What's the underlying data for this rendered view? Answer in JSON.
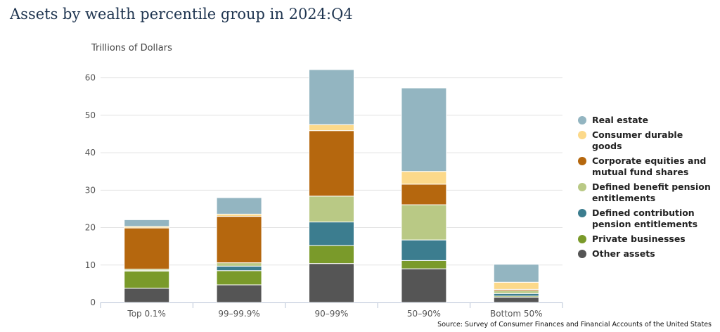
{
  "header": {
    "title": "Assets by wealth percentile group in 2024:Q4"
  },
  "footer": {
    "source": "Source: Survey of Consumer Finances and Financial Accounts of the United States"
  },
  "chart_data": {
    "type": "bar",
    "stacked": true,
    "title": "Assets by wealth percentile group in 2024:Q4",
    "ylabel": "Trillions of Dollars",
    "xlabel": "",
    "ylim": [
      0,
      60
    ],
    "yticks": [
      0,
      10,
      20,
      30,
      40,
      50,
      60
    ],
    "grid": true,
    "legend_position": "right",
    "categories": [
      "Top 0.1%",
      "99–99.9%",
      "90–99%",
      "50–90%",
      "Bottom 50%"
    ],
    "series": [
      {
        "name": "Other assets",
        "color": "#555555",
        "values": [
          3.8,
          4.7,
          10.4,
          9.0,
          1.4
        ]
      },
      {
        "name": "Private businesses",
        "color": "#7a9a2a",
        "values": [
          4.6,
          3.8,
          4.8,
          2.2,
          0.3
        ]
      },
      {
        "name": "Defined contribution pension entitlements",
        "color": "#3c7d8f",
        "values": [
          0.1,
          1.2,
          6.3,
          5.5,
          0.7
        ]
      },
      {
        "name": "Defined benefit pension entitlements",
        "color": "#b9c985",
        "values": [
          0.4,
          0.9,
          6.9,
          9.4,
          0.7
        ]
      },
      {
        "name": "Corporate equities and mutual fund shares",
        "color": "#b5670e",
        "values": [
          11.0,
          12.4,
          17.5,
          5.5,
          0.4
        ]
      },
      {
        "name": "Consumer durable goods",
        "color": "#fcd98a",
        "values": [
          0.4,
          0.6,
          1.6,
          3.4,
          1.9
        ]
      },
      {
        "name": "Real estate",
        "color": "#93b5c1",
        "values": [
          1.8,
          4.4,
          14.7,
          22.3,
          4.8
        ]
      }
    ],
    "legend_order": [
      6,
      5,
      4,
      3,
      2,
      1,
      0
    ]
  }
}
